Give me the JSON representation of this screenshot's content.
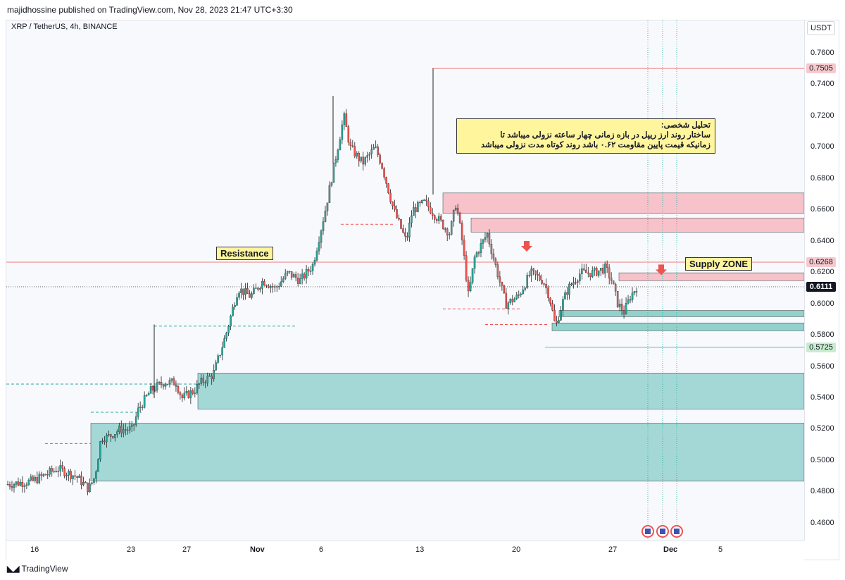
{
  "header": {
    "published": "majidhossine published on TradingView.com, Nov 28, 2023 21:47 UTC+3:30"
  },
  "symbol": "XRP / TetherUS, 4h, BINANCE",
  "currency": "USDT",
  "brand": {
    "name": "TradingView",
    "logo_icon": "tradingview-logo-icon"
  },
  "colors": {
    "up": "#26a69a",
    "down": "#ef5350",
    "supply_zone": "#f7b9c0",
    "demand_zone": "#80cbc4",
    "note_bg": "#fff59d"
  },
  "annotations": {
    "note_lines": [
      "تحلیل شخصی:",
      "ساختار روند ارز ریپل در بازه زمانی چهار ساعته نزولی میباشد تا",
      "زمانیکه قیمت  پایین مقاومت ۰.۶۲ باشد روند کوتاه مدت نزولی میباشد"
    ],
    "resistance": "Resistance",
    "supply_zone": "Supply ZONE"
  },
  "chart_data": {
    "type": "candlestick",
    "title": "XRP / TetherUS, 4h, BINANCE",
    "y_ticks": [
      "0.7600",
      "0.7400",
      "0.7200",
      "0.7000",
      "0.6800",
      "0.6600",
      "0.6400",
      "0.6200",
      "0.6000",
      "0.5800",
      "0.5600",
      "0.5400",
      "0.5200",
      "0.5000",
      "0.4800",
      "0.4600"
    ],
    "x_ticks": [
      "16",
      "23",
      "27",
      "Nov",
      "6",
      "13",
      "20",
      "27",
      "Dec",
      "5"
    ],
    "price_tags": [
      {
        "value": "0.7505",
        "style": "red"
      },
      {
        "value": "0.6268",
        "style": "red"
      },
      {
        "value": "0.6111",
        "style": "current"
      },
      {
        "value": "0.5725",
        "style": "green"
      }
    ],
    "ylim": [
      0.44,
      0.77
    ],
    "approx_close_path": [
      [
        0,
        0.485
      ],
      [
        4,
        0.487
      ],
      [
        8,
        0.495
      ],
      [
        11,
        0.49
      ],
      [
        13,
        0.482
      ],
      [
        14,
        0.49
      ],
      [
        15,
        0.515
      ],
      [
        16,
        0.515
      ],
      [
        18,
        0.52
      ],
      [
        20,
        0.52
      ],
      [
        21,
        0.533
      ],
      [
        23,
        0.545
      ],
      [
        25,
        0.55
      ],
      [
        27,
        0.55
      ],
      [
        28,
        0.54
      ],
      [
        30,
        0.545
      ],
      [
        31,
        0.55
      ],
      [
        33,
        0.555
      ],
      [
        35,
        0.58
      ],
      [
        37,
        0.61
      ],
      [
        39,
        0.605
      ],
      [
        41,
        0.615
      ],
      [
        43,
        0.61
      ],
      [
        45,
        0.62
      ],
      [
        47,
        0.615
      ],
      [
        49,
        0.625
      ],
      [
        51,
        0.66
      ],
      [
        53,
        0.7
      ],
      [
        54,
        0.72
      ],
      [
        55,
        0.7
      ],
      [
        57,
        0.69
      ],
      [
        59,
        0.7
      ],
      [
        60,
        0.69
      ],
      [
        62,
        0.66
      ],
      [
        64,
        0.64
      ],
      [
        65,
        0.66
      ],
      [
        67,
        0.665
      ],
      [
        69,
        0.655
      ],
      [
        71,
        0.645
      ],
      [
        72,
        0.665
      ],
      [
        73,
        0.64
      ],
      [
        74,
        0.605
      ],
      [
        75,
        0.63
      ],
      [
        77,
        0.645
      ],
      [
        79,
        0.615
      ],
      [
        80,
        0.6
      ],
      [
        82,
        0.605
      ],
      [
        84,
        0.62
      ],
      [
        86,
        0.615
      ],
      [
        87,
        0.605
      ],
      [
        88,
        0.585
      ],
      [
        89,
        0.6
      ],
      [
        90,
        0.61
      ],
      [
        92,
        0.62
      ],
      [
        94,
        0.62
      ],
      [
        96,
        0.623
      ],
      [
        97,
        0.615
      ],
      [
        98,
        0.6
      ],
      [
        99,
        0.595
      ],
      [
        100,
        0.605
      ],
      [
        101,
        0.611
      ]
    ],
    "zones": [
      {
        "kind": "supply",
        "from": 0.658,
        "to": 0.671
      },
      {
        "kind": "supply",
        "from": 0.646,
        "to": 0.655
      },
      {
        "kind": "supply",
        "from": 0.615,
        "to": 0.62
      },
      {
        "kind": "demand",
        "from": 0.592,
        "to": 0.596
      },
      {
        "kind": "demand",
        "from": 0.583,
        "to": 0.588
      },
      {
        "kind": "demand",
        "from": 0.533,
        "to": 0.556
      },
      {
        "kind": "demand",
        "from": 0.487,
        "to": 0.524
      }
    ]
  }
}
